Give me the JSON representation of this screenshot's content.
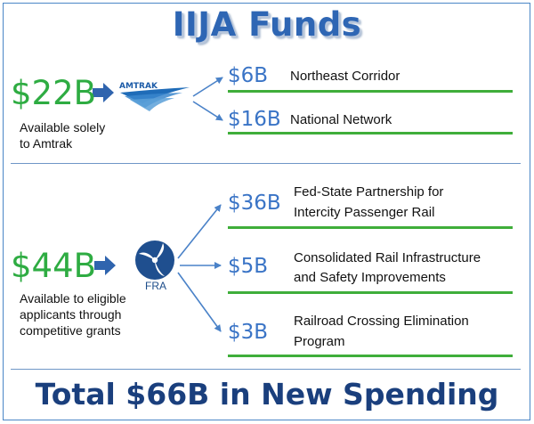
{
  "title": "IIJA Funds",
  "amtrak": {
    "total": "$22B",
    "note_line1": "Available solely",
    "note_line2": "to Amtrak",
    "logo_text": "AMTRAK",
    "items": [
      {
        "amount": "$6B",
        "label": "Northeast Corridor"
      },
      {
        "amount": "$16B",
        "label": "National Network"
      }
    ]
  },
  "fra": {
    "total": "$44B",
    "note_line1": "Available to eligible",
    "note_line2": "applicants through",
    "note_line3": "competitive grants",
    "logo_text": "FRA",
    "items": [
      {
        "amount": "$36B",
        "label_line1": "Fed-State Partnership for",
        "label_line2": "Intercity Passenger Rail"
      },
      {
        "amount": "$5B",
        "label_line1": "Consolidated Rail Infrastructure",
        "label_line2": "and Safety Improvements"
      },
      {
        "amount": "$3B",
        "label_line1": "Railroad Crossing Elimination",
        "label_line2": "Program"
      }
    ]
  },
  "footer": "Total $66B in New Spending",
  "colors": {
    "title_blue": "#2e66b4",
    "big_green": "#2eac42",
    "amount_blue": "#3a74c6",
    "underline_green": "#3fae3a",
    "footer_navy": "#1a3f7d",
    "fra_logo_blue": "#1f4f8f"
  }
}
